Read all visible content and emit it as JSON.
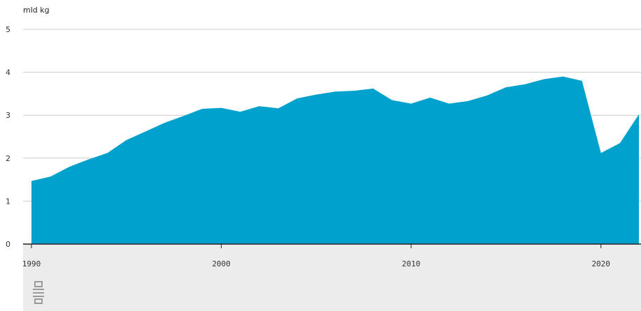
{
  "chart_data": {
    "type": "area",
    "ylabel": "mld kg",
    "xlim": [
      1990,
      2022
    ],
    "ylim": [
      0,
      5
    ],
    "yticks": [
      0,
      1,
      2,
      3,
      4,
      5
    ],
    "xticks": [
      1990,
      2000,
      2010,
      2020
    ],
    "grid": true,
    "series": [
      {
        "color": "#00a1cd",
        "points": [
          [
            1990,
            1.47
          ],
          [
            1991,
            1.57
          ],
          [
            1992,
            1.8
          ],
          [
            1993,
            1.97
          ],
          [
            1994,
            2.12
          ],
          [
            1995,
            2.42
          ],
          [
            1996,
            2.62
          ],
          [
            1997,
            2.82
          ],
          [
            1998,
            2.98
          ],
          [
            1999,
            3.15
          ],
          [
            2000,
            3.17
          ],
          [
            2001,
            3.08
          ],
          [
            2002,
            3.21
          ],
          [
            2003,
            3.16
          ],
          [
            2004,
            3.39
          ],
          [
            2005,
            3.48
          ],
          [
            2006,
            3.55
          ],
          [
            2007,
            3.57
          ],
          [
            2008,
            3.62
          ],
          [
            2009,
            3.35
          ],
          [
            2010,
            3.27
          ],
          [
            2011,
            3.41
          ],
          [
            2012,
            3.27
          ],
          [
            2013,
            3.33
          ],
          [
            2014,
            3.46
          ],
          [
            2015,
            3.65
          ],
          [
            2016,
            3.72
          ],
          [
            2017,
            3.84
          ],
          [
            2018,
            3.9
          ],
          [
            2019,
            3.8
          ],
          [
            2020,
            2.12
          ],
          [
            2021,
            2.35
          ],
          [
            2022,
            3.02
          ]
        ]
      }
    ]
  },
  "colors": {
    "area": "#00a1cd",
    "grid": "#cccccc",
    "axis": "#222222",
    "footer_bg": "#ececec"
  },
  "logo_icon": "cbs-logo-icon"
}
